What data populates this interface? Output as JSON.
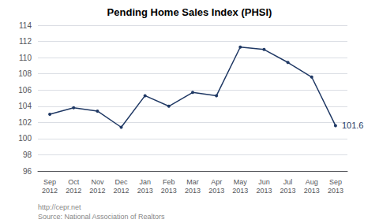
{
  "chart_data": {
    "type": "line",
    "title": "Pending Home Sales Index (PHSI)",
    "categories": [
      "Sep\n2012",
      "Oct\n2012",
      "Nov\n2012",
      "Dec\n2012",
      "Jan\n2013",
      "Feb\n2013",
      "Mar\n2013",
      "Apr\n2013",
      "May\n2013",
      "Jun\n2013",
      "Jul\n2013",
      "Aug\n2013",
      "Sep\n2013"
    ],
    "values": [
      103.0,
      103.8,
      103.4,
      101.4,
      105.3,
      104.0,
      105.7,
      105.3,
      111.3,
      111.0,
      109.4,
      107.6,
      101.6
    ],
    "color": "#1F3864",
    "marker": "circle",
    "ylim": [
      96,
      114
    ],
    "yticks": [
      96,
      98,
      100,
      102,
      104,
      106,
      108,
      110,
      112,
      114
    ],
    "grid": true,
    "annotations": [
      {
        "text": "101.6",
        "x": "Sep\n2013",
        "y": 101.6
      }
    ],
    "footer": [
      "http://cepr.net",
      "Source: National Association of Realtors"
    ]
  }
}
